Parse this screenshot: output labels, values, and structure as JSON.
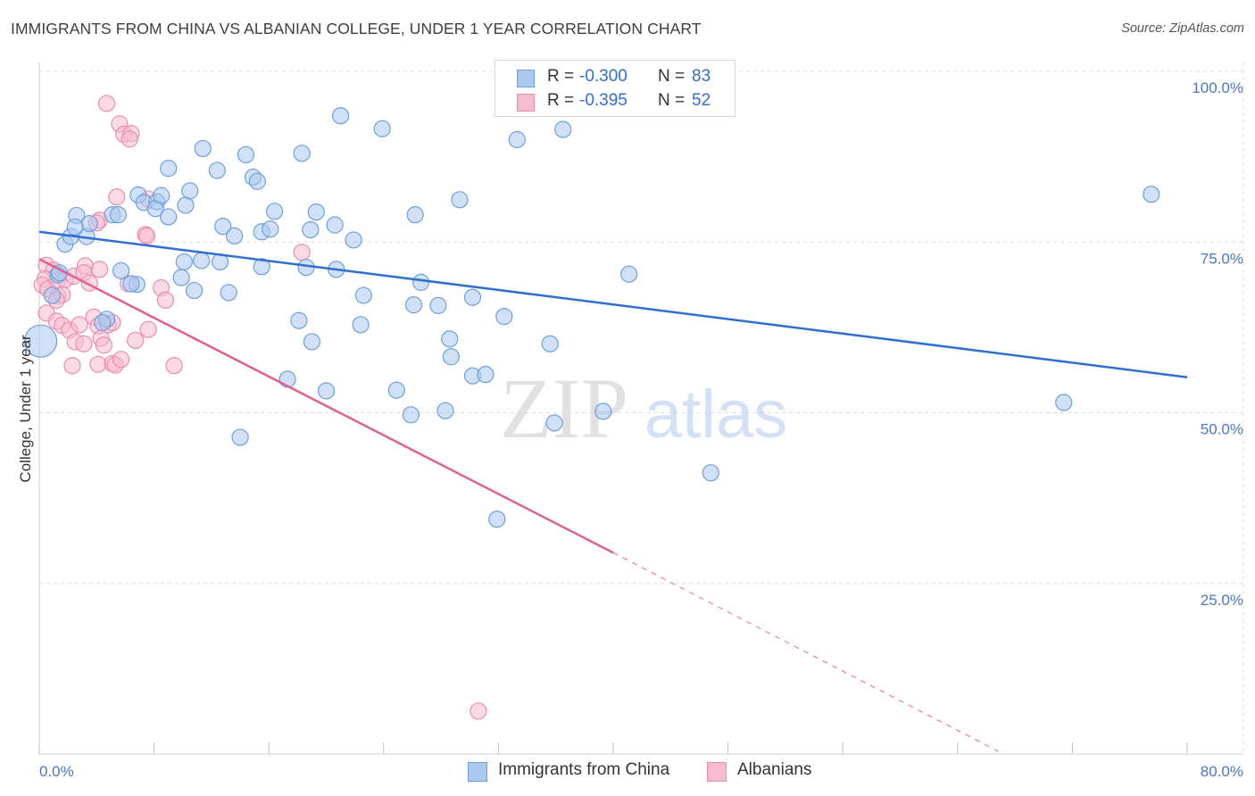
{
  "title": "IMMIGRANTS FROM CHINA VS ALBANIAN COLLEGE, UNDER 1 YEAR CORRELATION CHART",
  "source": "Source: ZipAtlas.com",
  "watermark": {
    "zip": "ZIP",
    "atlas": "atlas"
  },
  "legend": {
    "rows": [
      {
        "r_label": "R =",
        "r_value": "-0.300",
        "n_label": "N =",
        "n_value": "83"
      },
      {
        "r_label": "R =",
        "r_value": "-0.395",
        "n_label": "N =",
        "n_value": "52"
      }
    ]
  },
  "colors": {
    "china_fill": "#aac8f0",
    "china_stroke": "#6d9fdc",
    "china_line": "#2e6fd0",
    "albanian_fill": "#f7bcd0",
    "albanian_stroke": "#ea8cae",
    "albanian_line": "#e0608f",
    "grid": "#dcdcdc",
    "tick_label": "#4a78c4"
  },
  "chart_data": {
    "type": "scatter",
    "title": "IMMIGRANTS FROM CHINA VS ALBANIAN COLLEGE, UNDER 1 YEAR CORRELATION CHART",
    "xlabel": "",
    "ylabel": "College, Under 1 year",
    "xlim": [
      0,
      80
    ],
    "ylim": [
      0,
      100
    ],
    "x_tick_labels": [
      "0.0%",
      "80.0%"
    ],
    "y_tick_values": [
      25,
      50,
      75,
      100
    ],
    "y_tick_labels": [
      "25.0%",
      "50.0%",
      "75.0%",
      "100.0%"
    ],
    "grid": true,
    "series": [
      {
        "name": "Immigrants from China",
        "r": -0.3,
        "n": 83,
        "trend": {
          "x0": 0,
          "y0": 76.5,
          "x1": 80,
          "y1": 55.2
        },
        "points": [
          [
            0.1,
            60.5,
            3
          ],
          [
            1.3,
            70.2,
            1
          ],
          [
            2.6,
            78.9,
            1
          ],
          [
            1.8,
            74.7,
            1
          ],
          [
            2.2,
            75.8,
            1
          ],
          [
            3.3,
            75.8,
            1
          ],
          [
            3.5,
            77.7,
            1
          ],
          [
            5.1,
            79.0,
            1
          ],
          [
            6.9,
            81.9,
            1
          ],
          [
            7.3,
            80.8,
            1
          ],
          [
            8.2,
            80.9,
            1
          ],
          [
            8.1,
            79.9,
            1
          ],
          [
            8.5,
            81.8,
            1
          ],
          [
            10.2,
            80.4,
            1
          ],
          [
            9.0,
            85.8,
            1
          ],
          [
            11.4,
            88.7,
            1
          ],
          [
            10.5,
            82.5,
            1
          ],
          [
            12.4,
            85.5,
            1
          ],
          [
            14.4,
            87.8,
            1
          ],
          [
            14.9,
            84.5,
            1
          ],
          [
            15.2,
            83.9,
            1
          ],
          [
            12.8,
            77.3,
            1
          ],
          [
            13.6,
            75.9,
            1
          ],
          [
            15.5,
            76.5,
            1
          ],
          [
            16.1,
            76.9,
            1
          ],
          [
            16.4,
            79.5,
            1
          ],
          [
            10.1,
            72.1,
            1
          ],
          [
            11.3,
            72.3,
            1
          ],
          [
            12.6,
            72.1,
            1
          ],
          [
            9.0,
            78.7,
            1
          ],
          [
            5.5,
            79.0,
            1
          ],
          [
            5.7,
            70.8,
            1
          ],
          [
            6.8,
            68.8,
            1
          ],
          [
            9.9,
            69.8,
            1
          ],
          [
            10.8,
            67.9,
            1
          ],
          [
            13.2,
            67.6,
            1
          ],
          [
            15.5,
            71.4,
            1
          ],
          [
            18.6,
            71.3,
            1
          ],
          [
            19.3,
            79.4,
            1
          ],
          [
            18.9,
            76.8,
            1
          ],
          [
            20.6,
            77.5,
            1
          ],
          [
            21.9,
            75.3,
            1
          ],
          [
            18.3,
            88.0,
            1
          ],
          [
            21.0,
            93.5,
            1
          ],
          [
            23.9,
            91.6,
            1
          ],
          [
            26.2,
            79.0,
            1
          ],
          [
            29.3,
            81.2,
            1
          ],
          [
            33.3,
            90.0,
            1
          ],
          [
            36.5,
            91.5,
            1
          ],
          [
            20.7,
            71.0,
            1
          ],
          [
            22.6,
            67.2,
            1
          ],
          [
            26.6,
            69.1,
            1
          ],
          [
            26.1,
            65.8,
            1
          ],
          [
            27.8,
            65.7,
            1
          ],
          [
            30.2,
            66.9,
            1
          ],
          [
            32.4,
            64.1,
            1
          ],
          [
            35.6,
            60.1,
            1
          ],
          [
            28.6,
            60.8,
            1
          ],
          [
            28.7,
            58.2,
            1
          ],
          [
            30.2,
            55.4,
            1
          ],
          [
            31.1,
            55.6,
            1
          ],
          [
            18.1,
            63.5,
            1
          ],
          [
            19.0,
            60.4,
            1
          ],
          [
            22.4,
            62.9,
            1
          ],
          [
            17.3,
            54.9,
            1
          ],
          [
            20.0,
            53.2,
            1
          ],
          [
            24.9,
            53.3,
            1
          ],
          [
            25.9,
            49.7,
            1
          ],
          [
            28.3,
            50.3,
            1
          ],
          [
            35.9,
            48.5,
            1
          ],
          [
            39.3,
            50.2,
            1
          ],
          [
            41.1,
            70.3,
            1
          ],
          [
            46.8,
            41.2,
            1
          ],
          [
            31.9,
            34.4,
            1
          ],
          [
            14.0,
            46.4,
            1
          ],
          [
            71.4,
            51.5,
            1
          ],
          [
            77.5,
            82.0,
            1
          ],
          [
            4.7,
            63.7,
            1
          ],
          [
            0.9,
            67.2,
            1
          ],
          [
            1.4,
            70.5,
            1
          ],
          [
            2.5,
            77.2,
            1
          ],
          [
            6.4,
            68.9,
            1
          ],
          [
            4.4,
            63.2,
            1
          ]
        ]
      },
      {
        "name": "Albanians",
        "r": -0.395,
        "n": 52,
        "trend": {
          "x0": 0,
          "y0": 72.5,
          "x1": 40,
          "y1": 29.5,
          "dash_x1": 67.2,
          "dash_y1": 0
        },
        "points": [
          [
            4.7,
            95.3,
            1
          ],
          [
            5.6,
            92.3,
            1
          ],
          [
            5.9,
            90.8,
            1
          ],
          [
            6.4,
            90.9,
            1
          ],
          [
            6.3,
            90.1,
            1
          ],
          [
            5.4,
            81.6,
            1
          ],
          [
            7.6,
            81.3,
            1
          ],
          [
            7.4,
            76.1,
            1
          ],
          [
            7.5,
            75.9,
            1
          ],
          [
            18.3,
            73.5,
            1
          ],
          [
            4.2,
            78.2,
            1
          ],
          [
            4.0,
            77.8,
            1
          ],
          [
            0.5,
            71.6,
            1
          ],
          [
            1.0,
            70.9,
            1
          ],
          [
            0.4,
            69.6,
            1
          ],
          [
            0.2,
            68.7,
            1
          ],
          [
            0.6,
            68.1,
            1
          ],
          [
            1.3,
            69.4,
            1
          ],
          [
            1.3,
            67.1,
            1
          ],
          [
            1.6,
            67.3,
            1
          ],
          [
            1.8,
            69.5,
            1
          ],
          [
            2.4,
            70.0,
            1
          ],
          [
            3.2,
            71.5,
            1
          ],
          [
            3.1,
            70.5,
            1
          ],
          [
            4.2,
            71.0,
            1
          ],
          [
            3.5,
            69.0,
            1
          ],
          [
            6.2,
            68.9,
            1
          ],
          [
            8.5,
            68.3,
            1
          ],
          [
            8.8,
            66.5,
            1
          ],
          [
            0.5,
            64.6,
            1
          ],
          [
            1.2,
            63.4,
            1
          ],
          [
            1.6,
            62.8,
            1
          ],
          [
            2.1,
            62.1,
            1
          ],
          [
            2.8,
            62.9,
            1
          ],
          [
            3.8,
            64.0,
            1
          ],
          [
            4.1,
            62.7,
            1
          ],
          [
            4.8,
            62.9,
            1
          ],
          [
            5.1,
            63.2,
            1
          ],
          [
            7.6,
            62.2,
            1
          ],
          [
            2.5,
            60.4,
            1
          ],
          [
            3.1,
            60.1,
            1
          ],
          [
            4.3,
            60.9,
            1
          ],
          [
            4.5,
            59.9,
            1
          ],
          [
            6.7,
            60.6,
            1
          ],
          [
            2.3,
            56.9,
            1
          ],
          [
            4.1,
            57.1,
            1
          ],
          [
            5.1,
            57.2,
            1
          ],
          [
            5.3,
            57.0,
            1
          ],
          [
            5.7,
            57.8,
            1
          ],
          [
            9.4,
            56.9,
            1
          ],
          [
            30.6,
            6.3,
            1
          ],
          [
            1.2,
            66.5,
            1
          ]
        ]
      }
    ]
  },
  "bottom_legend": [
    {
      "label": "Immigrants from China"
    },
    {
      "label": "Albanians"
    }
  ]
}
